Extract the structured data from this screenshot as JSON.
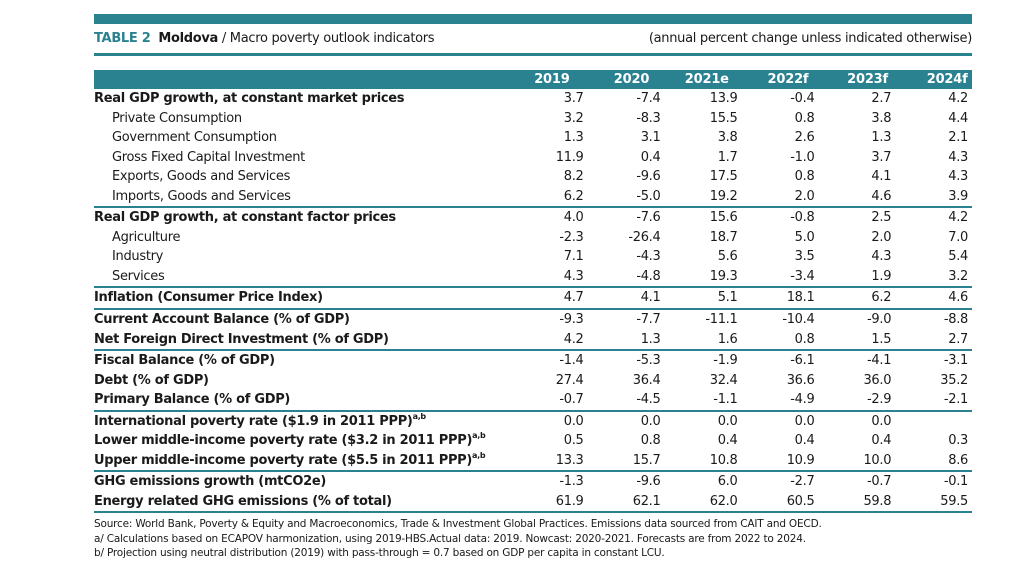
{
  "title": {
    "table_number": "TABLE 2",
    "country": "Moldova",
    "separator": " / Macro poverty outlook indicators",
    "unit_note": "(annual percent change unless indicated otherwise)"
  },
  "columns": [
    "2019",
    "2020",
    "2021e",
    "2022f",
    "2023f",
    "2024f"
  ],
  "rows": [
    {
      "label": "Real GDP growth, at constant market prices",
      "sup": "",
      "style": "bold",
      "values": [
        "3.7",
        "-7.4",
        "13.9",
        "-0.4",
        "2.7",
        "4.2"
      ]
    },
    {
      "label": "Private Consumption",
      "sup": "",
      "style": "sub",
      "values": [
        "3.2",
        "-8.3",
        "15.5",
        "0.8",
        "3.8",
        "4.4"
      ]
    },
    {
      "label": "Government Consumption",
      "sup": "",
      "style": "sub",
      "values": [
        "1.3",
        "3.1",
        "3.8",
        "2.6",
        "1.3",
        "2.1"
      ]
    },
    {
      "label": "Gross Fixed Capital Investment",
      "sup": "",
      "style": "sub",
      "values": [
        "11.9",
        "0.4",
        "1.7",
        "-1.0",
        "3.7",
        "4.3"
      ]
    },
    {
      "label": "Exports, Goods and Services",
      "sup": "",
      "style": "sub",
      "values": [
        "8.2",
        "-9.6",
        "17.5",
        "0.8",
        "4.1",
        "4.3"
      ]
    },
    {
      "label": "Imports, Goods and Services",
      "sup": "",
      "style": "sub",
      "values": [
        "6.2",
        "-5.0",
        "19.2",
        "2.0",
        "4.6",
        "3.9"
      ]
    },
    {
      "label": "Real GDP growth, at constant factor prices",
      "sup": "",
      "style": "bold",
      "values": [
        "4.0",
        "-7.6",
        "15.6",
        "-0.8",
        "2.5",
        "4.2"
      ]
    },
    {
      "label": "Agriculture",
      "sup": "",
      "style": "sub",
      "values": [
        "-2.3",
        "-26.4",
        "18.7",
        "5.0",
        "2.0",
        "7.0"
      ]
    },
    {
      "label": "Industry",
      "sup": "",
      "style": "sub",
      "values": [
        "7.1",
        "-4.3",
        "5.6",
        "3.5",
        "4.3",
        "5.4"
      ]
    },
    {
      "label": "Services",
      "sup": "",
      "style": "sub",
      "values": [
        "4.3",
        "-4.8",
        "19.3",
        "-3.4",
        "1.9",
        "3.2"
      ]
    },
    {
      "label": "Inflation (Consumer Price Index)",
      "sup": "",
      "style": "bold",
      "values": [
        "4.7",
        "4.1",
        "5.1",
        "18.1",
        "6.2",
        "4.6"
      ]
    },
    {
      "label": "Current Account Balance (% of GDP)",
      "sup": "",
      "style": "bold",
      "values": [
        "-9.3",
        "-7.7",
        "-11.1",
        "-10.4",
        "-9.0",
        "-8.8"
      ]
    },
    {
      "label": "Net Foreign Direct Investment (% of GDP)",
      "sup": "",
      "style": "bold",
      "values": [
        "4.2",
        "1.3",
        "1.6",
        "0.8",
        "1.5",
        "2.7"
      ]
    },
    {
      "label": "Fiscal Balance (% of GDP)",
      "sup": "",
      "style": "bold",
      "values": [
        "-1.4",
        "-5.3",
        "-1.9",
        "-6.1",
        "-4.1",
        "-3.1"
      ]
    },
    {
      "label": "Debt (% of GDP)",
      "sup": "",
      "style": "bold",
      "values": [
        "27.4",
        "36.4",
        "32.4",
        "36.6",
        "36.0",
        "35.2"
      ]
    },
    {
      "label": "Primary Balance (% of GDP)",
      "sup": "",
      "style": "bold",
      "values": [
        "-0.7",
        "-4.5",
        "-1.1",
        "-4.9",
        "-2.9",
        "-2.1"
      ]
    },
    {
      "label": "International poverty rate ($1.9 in 2011 PPP)",
      "sup": "a,b",
      "style": "bold",
      "values": [
        "0.0",
        "0.0",
        "0.0",
        "0.0",
        "0.0",
        ""
      ]
    },
    {
      "label": "Lower middle-income poverty rate ($3.2 in 2011 PPP)",
      "sup": "a,b",
      "style": "bold",
      "values": [
        "0.5",
        "0.8",
        "0.4",
        "0.4",
        "0.4",
        "0.3"
      ]
    },
    {
      "label": "Upper middle-income poverty rate ($5.5 in 2011 PPP)",
      "sup": "a,b",
      "style": "bold",
      "values": [
        "13.3",
        "15.7",
        "10.8",
        "10.9",
        "10.0",
        "8.6"
      ]
    },
    {
      "label": "GHG emissions growth (mtCO2e)",
      "sup": "",
      "style": "bold",
      "values": [
        "-1.3",
        "-9.6",
        "6.0",
        "-2.7",
        "-0.7",
        "-0.1"
      ]
    },
    {
      "label": "Energy related GHG emissions (% of total)",
      "sup": "",
      "style": "bold",
      "values": [
        "61.9",
        "62.1",
        "62.0",
        "60.5",
        "59.8",
        "59.5"
      ]
    }
  ],
  "rules_after_rows": [
    5,
    9,
    10,
    12,
    15,
    18,
    20
  ],
  "notes": [
    "Source: World Bank, Poverty & Equity and Macroeconomics, Trade & Investment Global Practices. Emissions data sourced from CAIT and OECD.",
    "a/ Calculations based on ECAPOV harmonization, using 2019-HBS.Actual data: 2019. Nowcast: 2020-2021. Forecasts are from 2022 to 2024.",
    "b/ Projection using neutral distribution (2019) with pass-through = 0.7 based on GDP per capita in constant LCU."
  ],
  "colors": {
    "accent": "#2a8291",
    "text": "#1a1a1a"
  }
}
